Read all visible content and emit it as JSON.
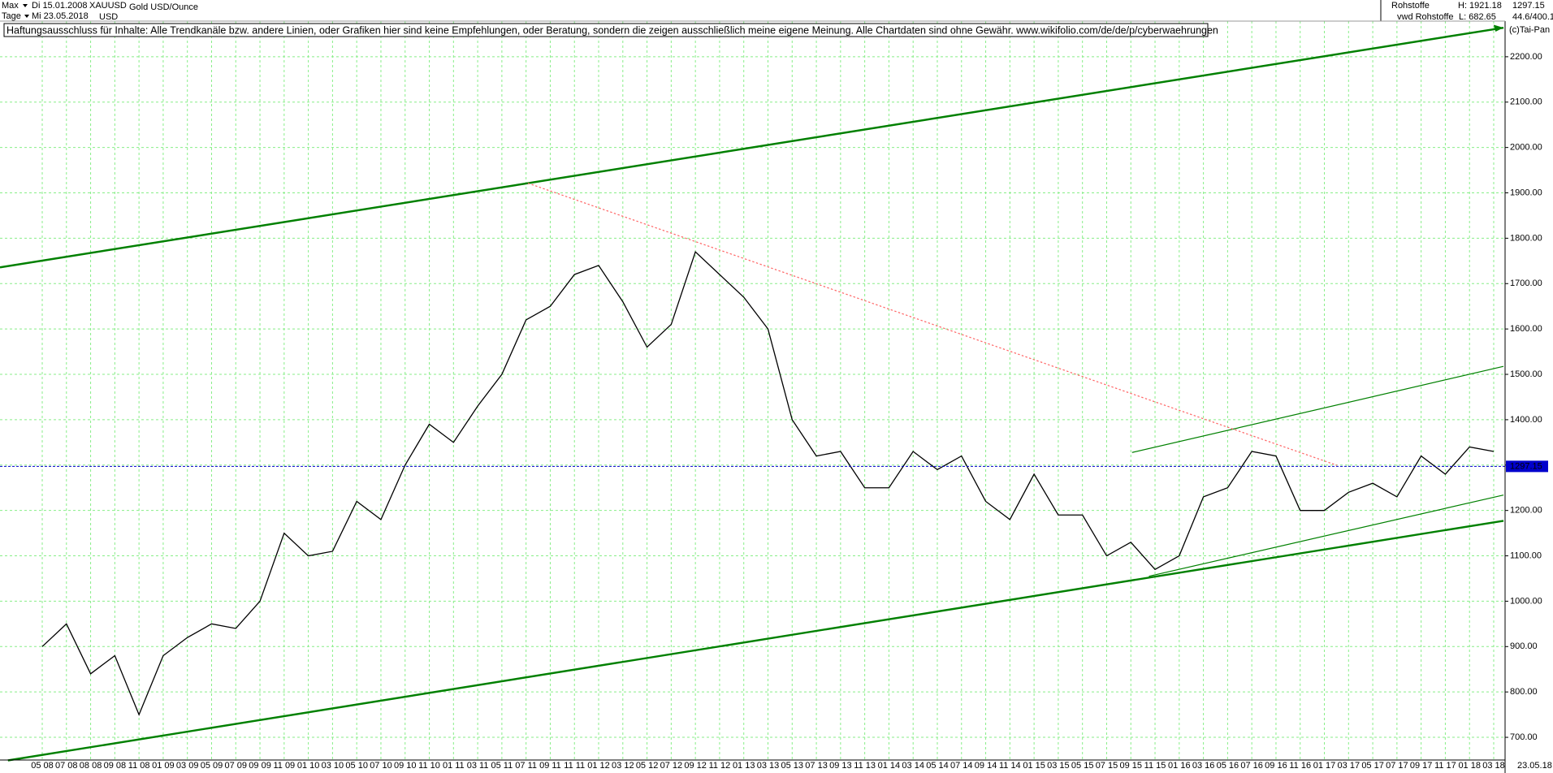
{
  "header": {
    "range": "Max",
    "start_date": "Di 15.01.2008",
    "symbol": "XAUUSD",
    "name": "Gold USD/Ounce",
    "period": "Tage",
    "end_date": "Mi 23.05.2018",
    "currency": "USD",
    "group": "Rohstoffe",
    "high": "H: 1921.18",
    "source": "vwd Rohstoffe",
    "low": "L: 682.65",
    "scale_info": "44.6/400.1",
    "copyright": "(c)Tai-Pan",
    "last_date": "23.05.18"
  },
  "disclaimer": "Haftungsausschluss für Inhalte: Alle Trendkanäle bzw. andere Linien, oder Grafiken hier sind keine Empfehlungen, oder Beratung, sondern die zeigen ausschließlich meine eigene Meinung. Alle Chartdaten sind ohne Gewähr.  www.wikifolio.com/de/de/p/cyberwaehrungen",
  "chart_data": {
    "type": "line",
    "color": "#000000",
    "grid": true,
    "grid_color": "#88ee88",
    "categories": [
      "05 08",
      "07 08",
      "08 08",
      "09 08",
      "11 08",
      "01 09",
      "03 09",
      "05 09",
      "07 09",
      "09 09",
      "11 09",
      "01 10",
      "03 10",
      "05 10",
      "07 10",
      "09 10",
      "11 10",
      "01 11",
      "03 11",
      "05 11",
      "07 11",
      "09 11",
      "11 11",
      "01 12",
      "03 12",
      "05 12",
      "07 12",
      "09 12",
      "11 12",
      "01 13",
      "03 13",
      "05 13",
      "07 13",
      "09 13",
      "11 13",
      "01 14",
      "03 14",
      "05 14",
      "07 14",
      "09 14",
      "11 14",
      "01 15",
      "03 15",
      "05 15",
      "07 15",
      "09 15",
      "11 15",
      "01 16",
      "03 16",
      "05 16",
      "07 16",
      "09 16",
      "11 16",
      "01 17",
      "03 17",
      "05 17",
      "07 17",
      "09 17",
      "11 17",
      "01 18",
      "03 18"
    ],
    "values": [
      900,
      950,
      840,
      880,
      750,
      880,
      920,
      950,
      940,
      1000,
      1150,
      1100,
      1110,
      1220,
      1180,
      1300,
      1390,
      1350,
      1430,
      1500,
      1620,
      1650,
      1720,
      1740,
      1660,
      1560,
      1610,
      1770,
      1720,
      1670,
      1600,
      1400,
      1320,
      1330,
      1250,
      1250,
      1330,
      1290,
      1320,
      1220,
      1180,
      1280,
      1190,
      1190,
      1100,
      1130,
      1070,
      1100,
      1230,
      1250,
      1330,
      1320,
      1200,
      1200,
      1240,
      1260,
      1230,
      1320,
      1280,
      1340,
      1330
    ],
    "last_value": 1297.15,
    "last_value_color": "#0000cc",
    "ylim": [
      650,
      2300
    ],
    "yticks": [
      {
        "value": 700,
        "label": "700.00"
      },
      {
        "value": 800,
        "label": "800.00"
      },
      {
        "value": 900,
        "label": "900.00"
      },
      {
        "value": 1000,
        "label": "1000.00"
      },
      {
        "value": 1100,
        "label": "1100.00"
      },
      {
        "value": 1200,
        "label": "1200.00"
      },
      {
        "value": 1300,
        "label": "1300.00"
      },
      {
        "value": 1400,
        "label": "1400.00"
      },
      {
        "value": 1500,
        "label": "1500.00"
      },
      {
        "value": 1600,
        "label": "1600.00"
      },
      {
        "value": 1700,
        "label": "1700.00"
      },
      {
        "value": 1800,
        "label": "1800.00"
      },
      {
        "value": 1900,
        "label": "1900.00"
      },
      {
        "value": 2000,
        "label": "2000.00"
      },
      {
        "value": 2100,
        "label": "2100.00"
      },
      {
        "value": 2200,
        "label": "2200.00"
      }
    ]
  }
}
